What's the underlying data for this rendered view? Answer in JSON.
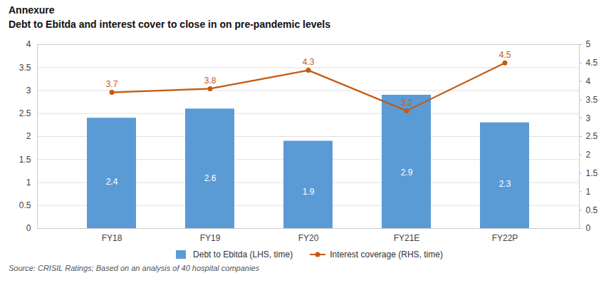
{
  "chart_data": {
    "type": "bar",
    "title": "Annexure",
    "subtitle": "Debt to Ebitda and interest cover to close in on pre-pandemic levels",
    "source": "Source: CRISIL Ratings; Based on an analysis of 40 hospital companies",
    "categories": [
      "FY18",
      "FY19",
      "FY20",
      "FY21E",
      "FY22P"
    ],
    "series": [
      {
        "name": "Debt to Ebitda (LHS, time)",
        "type": "bar",
        "color": "#5B9BD5",
        "values": [
          2.4,
          2.6,
          1.9,
          2.9,
          2.3
        ]
      },
      {
        "name": "Interest coverage (RHS, time)",
        "type": "line",
        "axis": "y2",
        "color": "#C55A11",
        "marker": "circle",
        "values": [
          3.7,
          3.8,
          4.3,
          3.2,
          4.5
        ]
      }
    ],
    "ylim": [
      0,
      4
    ],
    "yticks": [
      0,
      0.5,
      1,
      1.5,
      2,
      2.5,
      3,
      3.5,
      4
    ],
    "y2lim": [
      0,
      5
    ],
    "y2ticks": [
      0,
      0.5,
      1,
      1.5,
      2,
      2.5,
      3,
      3.5,
      4,
      4.5,
      5
    ],
    "grid": true,
    "legend": "bottom",
    "data_labels": true
  }
}
